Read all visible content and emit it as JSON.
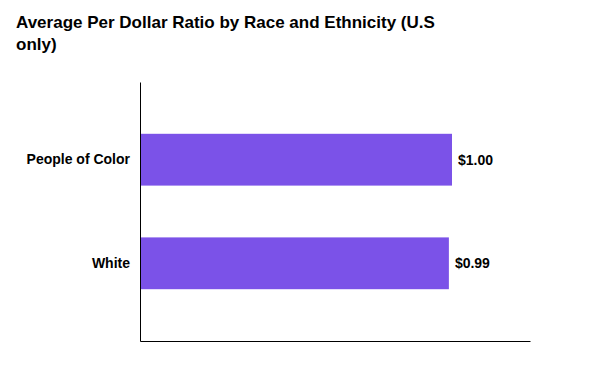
{
  "chart_data": {
    "type": "bar",
    "orientation": "horizontal",
    "title": "Average Per Dollar Ratio by Race and Ethnicity (U.S\nonly)",
    "categories": [
      "People of Color",
      "White"
    ],
    "values": [
      1.0,
      0.99
    ],
    "value_labels": [
      "$1.00",
      "$0.99"
    ],
    "data_labels": true,
    "color": "#7B52E8",
    "xlim": [
      0,
      1.25
    ],
    "tick_labels": "y"
  }
}
